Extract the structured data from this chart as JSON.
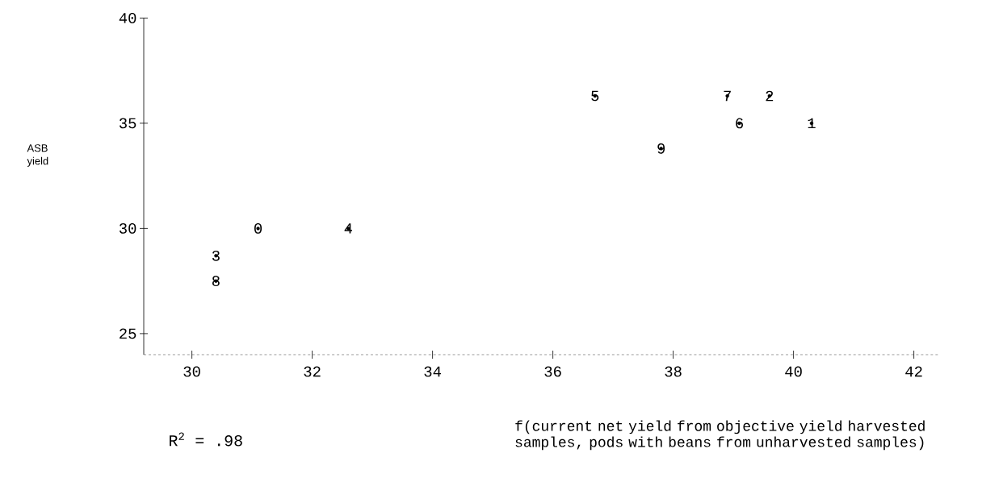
{
  "chart_data": {
    "type": "scatter",
    "annotations": [
      "ASB yield",
      "R$^{2}$ = .98",
      "f(current net yield from objective yield harvested samples, pods with beans from unharvested samples)"
    ],
    "series": [
      {
        "name": "0",
        "color": "#000000",
        "x": [
          31.1
        ],
        "values": [
          30.0
        ]
      },
      {
        "name": "1",
        "color": "#000000",
        "x": [
          40.3
        ],
        "values": [
          35.0
        ]
      },
      {
        "name": "2",
        "color": "#000000",
        "x": [
          39.6
        ],
        "values": [
          36.3
        ]
      },
      {
        "name": "3",
        "color": "#000000",
        "x": [
          30.4
        ],
        "values": [
          28.7
        ]
      },
      {
        "name": "4",
        "color": "#000000",
        "x": [
          32.6
        ],
        "values": [
          30.0
        ]
      },
      {
        "name": "5",
        "color": "#000000",
        "x": [
          36.7
        ],
        "values": [
          36.3
        ]
      },
      {
        "name": "6",
        "color": "#000000",
        "x": [
          39.1
        ],
        "values": [
          35.0
        ]
      },
      {
        "name": "7",
        "color": "#000000",
        "x": [
          38.9
        ],
        "values": [
          36.3
        ]
      },
      {
        "name": "8",
        "color": "#000000",
        "x": [
          30.4
        ],
        "values": [
          27.5
        ]
      },
      {
        "name": "9",
        "color": "#000000",
        "x": [
          37.8
        ],
        "values": [
          33.8
        ]
      }
    ],
    "grid": false,
    "legend": false,
    "xlim": [
      29.2,
      42.4
    ],
    "ylim": [
      24,
      40
    ],
    "xticks": [
      30,
      32,
      34,
      36,
      38,
      40,
      42
    ],
    "yticks": [
      25,
      30,
      35,
      40
    ]
  }
}
